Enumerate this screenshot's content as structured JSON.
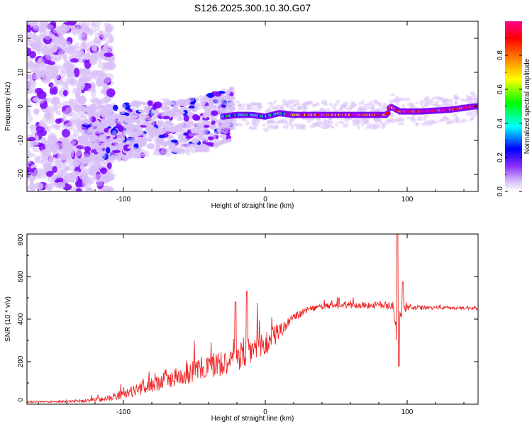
{
  "title": "S126.2025.300.10.30.G07",
  "chart_data": [
    {
      "type": "heatmap",
      "title": "S126.2025.300.10.30.G07",
      "xlabel": "Height of straight line (km)",
      "ylabel": "Frequency (Hz)",
      "xlim": [
        -168,
        150
      ],
      "ylim": [
        -25,
        25
      ],
      "x_ticks": [
        -100,
        0,
        100
      ],
      "y_ticks": [
        20,
        10,
        0,
        -10,
        -20
      ],
      "x_tick_labels": [
        "-100",
        "0",
        "100"
      ],
      "y_tick_labels": [
        "20",
        "10",
        "0",
        "-10",
        "-20"
      ],
      "ridge": {
        "x": [
          -120,
          -100,
          -80,
          -60,
          -40,
          -30,
          -20,
          -10,
          0,
          10,
          20,
          40,
          60,
          80,
          86,
          88,
          95,
          110,
          130,
          148
        ],
        "freq": [
          -8,
          -7.5,
          -6,
          -6,
          -5,
          -3,
          -2.5,
          -2.5,
          -3,
          -2,
          -2.5,
          -2.5,
          -2.5,
          -2.5,
          -2.5,
          0,
          -1.5,
          -1.5,
          -1,
          0
        ]
      },
      "colorbar": {
        "label": "Normalized spectral amplitude",
        "range": [
          0,
          1
        ],
        "ticks": [
          0.0,
          0.2,
          0.4,
          0.6,
          0.8
        ],
        "tick_labels": [
          "0.0",
          "0.2",
          "0.4",
          "0.6",
          "0.8"
        ],
        "colormap": [
          "#ffffff",
          "#d8bff8",
          "#7b00ff",
          "#0000ff",
          "#00ffff",
          "#00ff00",
          "#ffff00",
          "#ff8000",
          "#ff0000",
          "#ff00aa"
        ]
      }
    },
    {
      "type": "line",
      "xlabel": "Height of straight line (km)",
      "ylabel": "SNR (10 * v/v)",
      "xlim": [
        -168,
        150
      ],
      "ylim": [
        0,
        800
      ],
      "x_ticks": [
        -100,
        0,
        100
      ],
      "y_ticks": [
        0,
        200,
        400,
        600,
        800
      ],
      "x_tick_labels": [
        "-100",
        "0",
        "100"
      ],
      "y_tick_labels": [
        "0",
        "200",
        "400",
        "600",
        "800"
      ],
      "color": "#ee2222",
      "series": [
        {
          "name": "SNR",
          "x": [
            -168,
            -150,
            -130,
            -115,
            -100,
            -90,
            -80,
            -70,
            -60,
            -50,
            -40,
            -30,
            -20,
            -10,
            0,
            10,
            20,
            30,
            40,
            60,
            80,
            90,
            93,
            95,
            100,
            110,
            120,
            130,
            150
          ],
          "y": [
            10,
            10,
            12,
            20,
            40,
            60,
            80,
            100,
            120,
            140,
            160,
            180,
            200,
            230,
            260,
            330,
            400,
            440,
            455,
            460,
            460,
            460,
            260,
            420,
            450,
            450,
            450,
            450,
            450
          ],
          "noise": [
            4,
            4,
            6,
            12,
            22,
            28,
            34,
            40,
            45,
            55,
            60,
            70,
            80,
            80,
            70,
            40,
            20,
            14,
            14,
            16,
            18,
            20,
            30,
            30,
            14,
            10,
            10,
            8,
            8
          ]
        }
      ],
      "annotations": [
        {
          "x": -13,
          "y": 530
        },
        {
          "x": 93,
          "y": 800
        },
        {
          "x": 94,
          "y": 180
        },
        {
          "x": 97,
          "y": 575
        }
      ]
    }
  ]
}
